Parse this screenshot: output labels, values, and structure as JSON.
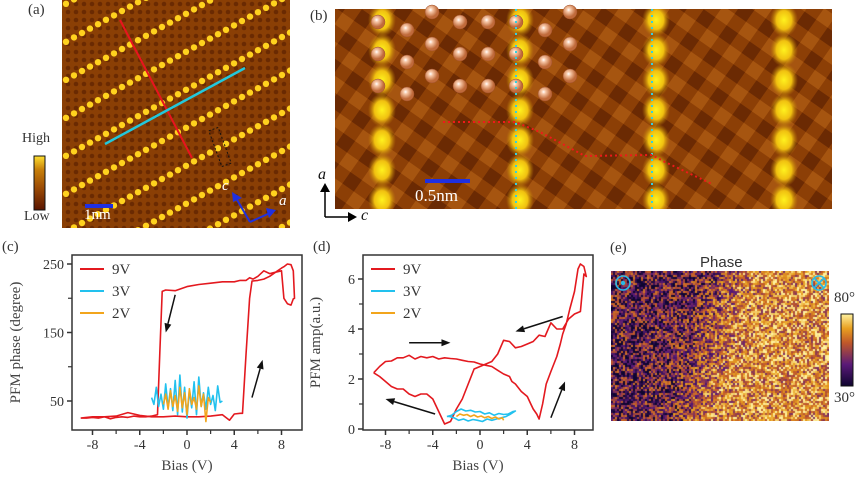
{
  "figure": {
    "panels": {
      "a": {
        "label": "(a)",
        "colorbar": {
          "high_label": "High",
          "low_label": "Low",
          "colors": [
            "#5a1500",
            "#9a4a05",
            "#c8800a",
            "#ffe030"
          ]
        },
        "scale_bar_label": "1nm",
        "axis_labels": {
          "c": "c",
          "a": "a"
        },
        "line_colors": {
          "red_line": "#e8141e",
          "cyan_line": "#22c8dc",
          "box": "#111111",
          "axis_arrows": "#1f30e0",
          "scale_bar": "#1f30e0"
        },
        "image_colors": {
          "background": "#8a3f05",
          "bright_chain": "#ffd21e"
        }
      },
      "b": {
        "label": "(b)",
        "scale_bar_label": "0.5nm",
        "axis_labels": {
          "a": "a",
          "c": "c"
        },
        "line_colors": {
          "red_dotted": "#ee1a1a",
          "cyan_dotted": "#35d0e0",
          "scale_bar": "#1f30e0",
          "atoms": "#e08a5a"
        },
        "image_colors": {
          "background": "#8c3f06",
          "bright": "#ffe820"
        }
      },
      "c": {
        "label": "(c)"
      },
      "d": {
        "label": "(d)"
      },
      "e": {
        "label": "(e)",
        "title": "Phase",
        "colorbar": {
          "max_label": "80°",
          "min_label": "30°",
          "colors": [
            "#0e0530",
            "#5a1a78",
            "#c0582a",
            "#e8a020",
            "#fff2a0"
          ]
        },
        "markers": {
          "left": "dot-in-circle",
          "right": "cross-in-circle",
          "color": "#2ab8e6"
        }
      }
    }
  },
  "chart_data": [
    {
      "panel": "c",
      "type": "line",
      "title": "",
      "xlabel": "Bias (V)",
      "ylabel": "PFM phase (degree)",
      "xlim": [
        -9.5,
        10
      ],
      "ylim": [
        10,
        265
      ],
      "xticks": [
        -8,
        -4,
        0,
        4,
        8
      ],
      "yticks": [
        50,
        150,
        250
      ],
      "legend": "top-left",
      "series": [
        {
          "name": "9V",
          "color": "#e3191f",
          "x": [
            -9,
            -8.5,
            -8,
            -7.5,
            -7,
            -6.5,
            -6,
            -5.5,
            -5,
            -4.5,
            -4,
            -3.5,
            -3,
            -2.5,
            -2.3,
            -2.1,
            -1.8,
            -1,
            0,
            1,
            2,
            3,
            4,
            4.5,
            5,
            5.3,
            5.6,
            6,
            6.5,
            7,
            7.5,
            8,
            8.2,
            8.5,
            8.8,
            9,
            9.1,
            9,
            8.8,
            8.5,
            8.2,
            8,
            7.5,
            7,
            6.5,
            6,
            5.5,
            5.3,
            5,
            4.7,
            4.5,
            4,
            3.6,
            3,
            2,
            1,
            0,
            -1,
            -2,
            -3,
            -4,
            -5,
            -6,
            -7,
            -8,
            -9
          ],
          "y": [
            25,
            25,
            26,
            25,
            27,
            24,
            26,
            27,
            26,
            28,
            27,
            27,
            28,
            30,
            120,
            210,
            212,
            211,
            217,
            220,
            222,
            224,
            224,
            226,
            226,
            230,
            228,
            232,
            240,
            236,
            238,
            244,
            246,
            250,
            249,
            240,
            200,
            199,
            190,
            192,
            200,
            240,
            238,
            232,
            228,
            226,
            225,
            200,
            120,
            32,
            32,
            31,
            22,
            30,
            28,
            27,
            27,
            28,
            27,
            27,
            29,
            33,
            28,
            27,
            27,
            25
          ]
        },
        {
          "name": "3V",
          "color": "#22c1ee",
          "x": [
            -3,
            -2.8,
            -2.6,
            -2.4,
            -2.2,
            -2,
            -1.8,
            -1.6,
            -1.4,
            -1.2,
            -1,
            -0.8,
            -0.6,
            -0.4,
            -0.2,
            0,
            0.2,
            0.4,
            0.6,
            0.8,
            1,
            1.2,
            1.4,
            1.6,
            1.8,
            2,
            2.2,
            2.4,
            2.6,
            2.8,
            3
          ],
          "y": [
            55,
            45,
            70,
            42,
            60,
            38,
            75,
            40,
            68,
            36,
            80,
            30,
            88,
            34,
            70,
            25,
            65,
            40,
            78,
            30,
            85,
            42,
            62,
            38,
            70,
            45,
            58,
            36,
            72,
            48,
            50
          ]
        },
        {
          "name": "2V",
          "color": "#f2a51c",
          "x": [
            -2,
            -1.8,
            -1.6,
            -1.4,
            -1.2,
            -1,
            -0.8,
            -0.6,
            -0.4,
            -0.2,
            0,
            0.2,
            0.4,
            0.6,
            0.8,
            1,
            1.2,
            1.4,
            1.6,
            1.8,
            2
          ],
          "y": [
            45,
            60,
            38,
            65,
            42,
            58,
            35,
            70,
            40,
            62,
            30,
            68,
            45,
            55,
            38,
            72,
            42,
            60,
            20,
            55,
            48
          ]
        }
      ],
      "annotations": [
        {
          "type": "arrow",
          "direction": "down",
          "from": [
            -1,
            205
          ],
          "to": [
            -1.8,
            150
          ]
        },
        {
          "type": "arrow",
          "direction": "up",
          "from": [
            5.5,
            55
          ],
          "to": [
            6.4,
            110
          ]
        }
      ]
    },
    {
      "panel": "d",
      "type": "line",
      "title": "",
      "xlabel": "Bias (V)",
      "ylabel": "PFM amp(a.u.)",
      "xlim": [
        -9.5,
        10
      ],
      "ylim": [
        0,
        6.9
      ],
      "xticks": [
        -8,
        -4,
        0,
        4,
        8
      ],
      "yticks": [
        0,
        2,
        4,
        6
      ],
      "legend": "top-left",
      "series": [
        {
          "name": "9V",
          "color": "#e3191f",
          "x": [
            -9,
            -8.5,
            -8,
            -7.5,
            -7,
            -6.5,
            -6,
            -5.5,
            -5,
            -4.5,
            -4,
            -3.5,
            -3,
            -2.5,
            -2,
            -1.5,
            -1,
            -0.5,
            0,
            0.5,
            1,
            1.5,
            2,
            2.5,
            2.7,
            3,
            3.5,
            4,
            4.3,
            4.5,
            4.8,
            5,
            5.3,
            5.6,
            6,
            6.5,
            6.8,
            7,
            7.3,
            7.6,
            8,
            8.3,
            8.5,
            8.8,
            9,
            8.8,
            8.5,
            8,
            7.5,
            7,
            6.5,
            6,
            5.5,
            5,
            4.5,
            4,
            3.5,
            3,
            2.5,
            2,
            1.5,
            1,
            0.5,
            0,
            -0.5,
            -1,
            -1.5,
            -2,
            -2.5,
            -3,
            -3.5,
            -4,
            -4.5,
            -5,
            -5.5,
            -6,
            -6.5,
            -7,
            -7.5,
            -8,
            -8.5,
            -9
          ],
          "y": [
            2.25,
            2.5,
            2.7,
            2.72,
            2.85,
            2.85,
            2.95,
            2.8,
            2.9,
            2.85,
            2.9,
            2.8,
            2.85,
            2.82,
            2.8,
            2.75,
            2.7,
            2.68,
            2.6,
            2.55,
            2.5,
            2.35,
            2.2,
            2.1,
            1.9,
            1.8,
            1.5,
            1.3,
            1.0,
            0.8,
            0.6,
            0.4,
            1.0,
            1.8,
            2.3,
            2.9,
            3.4,
            3.8,
            4.2,
            4.8,
            5.5,
            6.4,
            6.6,
            6.5,
            6.1,
            6.2,
            4.7,
            4.6,
            4.4,
            4.0,
            4.0,
            4.25,
            3.7,
            3.75,
            3.5,
            3.4,
            3.3,
            3.25,
            3.5,
            3.55,
            3.0,
            2.7,
            2.6,
            2.5,
            2.4,
            1.8,
            1.2,
            0.8,
            0.3,
            0.2,
            0.7,
            1.2,
            1.4,
            1.4,
            1.3,
            1.4,
            1.6,
            1.6,
            1.7,
            1.9,
            2.1,
            2.25
          ]
        },
        {
          "name": "3V",
          "color": "#22c1ee",
          "x": [
            -2.8,
            -2.4,
            -2,
            -1.6,
            -1.2,
            -0.8,
            -0.4,
            0,
            0.4,
            0.8,
            1.2,
            1.6,
            2,
            2.4,
            2.8,
            3,
            2.6,
            2.2,
            1.8,
            1.4,
            1,
            0.6,
            0.2,
            -0.2,
            -0.6,
            -1,
            -1.4,
            -1.8,
            -2.2,
            -2.6,
            -2.8
          ],
          "y": [
            0.5,
            0.55,
            0.7,
            0.8,
            0.72,
            0.75,
            0.68,
            0.7,
            0.6,
            0.65,
            0.55,
            0.62,
            0.58,
            0.6,
            0.7,
            0.72,
            0.6,
            0.5,
            0.45,
            0.4,
            0.35,
            0.4,
            0.3,
            0.35,
            0.38,
            0.32,
            0.4,
            0.35,
            0.45,
            0.5,
            0.5
          ]
        },
        {
          "name": "2V",
          "color": "#f2a51c",
          "x": [
            -2,
            -1.7,
            -1.4,
            -1.1,
            -0.8,
            -0.5,
            -0.2,
            0.1,
            0.4,
            0.7,
            1,
            1.3,
            1.6,
            1.9,
            2
          ],
          "y": [
            0.5,
            0.6,
            0.55,
            0.58,
            0.5,
            0.56,
            0.48,
            0.52,
            0.45,
            0.5,
            0.42,
            0.48,
            0.4,
            0.45,
            0.35
          ]
        }
      ],
      "annotations": [
        {
          "type": "arrow",
          "direction": "right",
          "from": [
            -6,
            3.45
          ],
          "to": [
            -2.5,
            3.45
          ]
        },
        {
          "type": "arrow",
          "direction": "left",
          "from": [
            7,
            4.5
          ],
          "to": [
            3,
            3.9
          ]
        },
        {
          "type": "arrow",
          "direction": "left-up",
          "from": [
            -3.8,
            0.6
          ],
          "to": [
            -8,
            1.2
          ]
        },
        {
          "type": "arrow",
          "direction": "up",
          "from": [
            6,
            0.45
          ],
          "to": [
            7.2,
            1.9
          ]
        }
      ]
    }
  ]
}
